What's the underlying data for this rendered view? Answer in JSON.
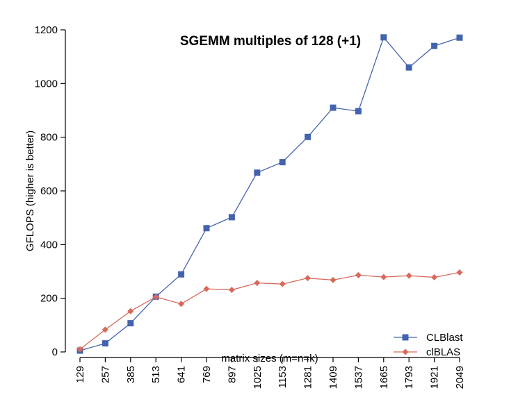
{
  "chart_data": {
    "type": "line",
    "title": "SGEMM multiples of 128 (+1)",
    "xlabel": "matrix sizes (m=n=k)",
    "ylabel": "GFLOPS (higher is better)",
    "categories": [
      "129",
      "257",
      "385",
      "513",
      "641",
      "769",
      "897",
      "1025",
      "1153",
      "1281",
      "1409",
      "1537",
      "1665",
      "1793",
      "1921",
      "2049"
    ],
    "yticks": [
      0,
      200,
      400,
      600,
      800,
      1000,
      1200
    ],
    "ylim": [
      0,
      1200
    ],
    "grid": false,
    "legend_position": "bottom-right",
    "series": [
      {
        "name": "CLBlast",
        "color": "#4463ad",
        "marker": "square",
        "values": [
          5,
          32,
          107,
          206,
          289,
          461,
          502,
          668,
          707,
          801,
          910,
          897,
          1172,
          1060,
          1140,
          1171
        ]
      },
      {
        "name": "clBLAS",
        "color": "#d9695b",
        "marker": "diamond",
        "values": [
          10,
          83,
          152,
          205,
          179,
          235,
          231,
          257,
          253,
          275,
          268,
          286,
          279,
          284,
          278,
          296
        ]
      }
    ]
  }
}
